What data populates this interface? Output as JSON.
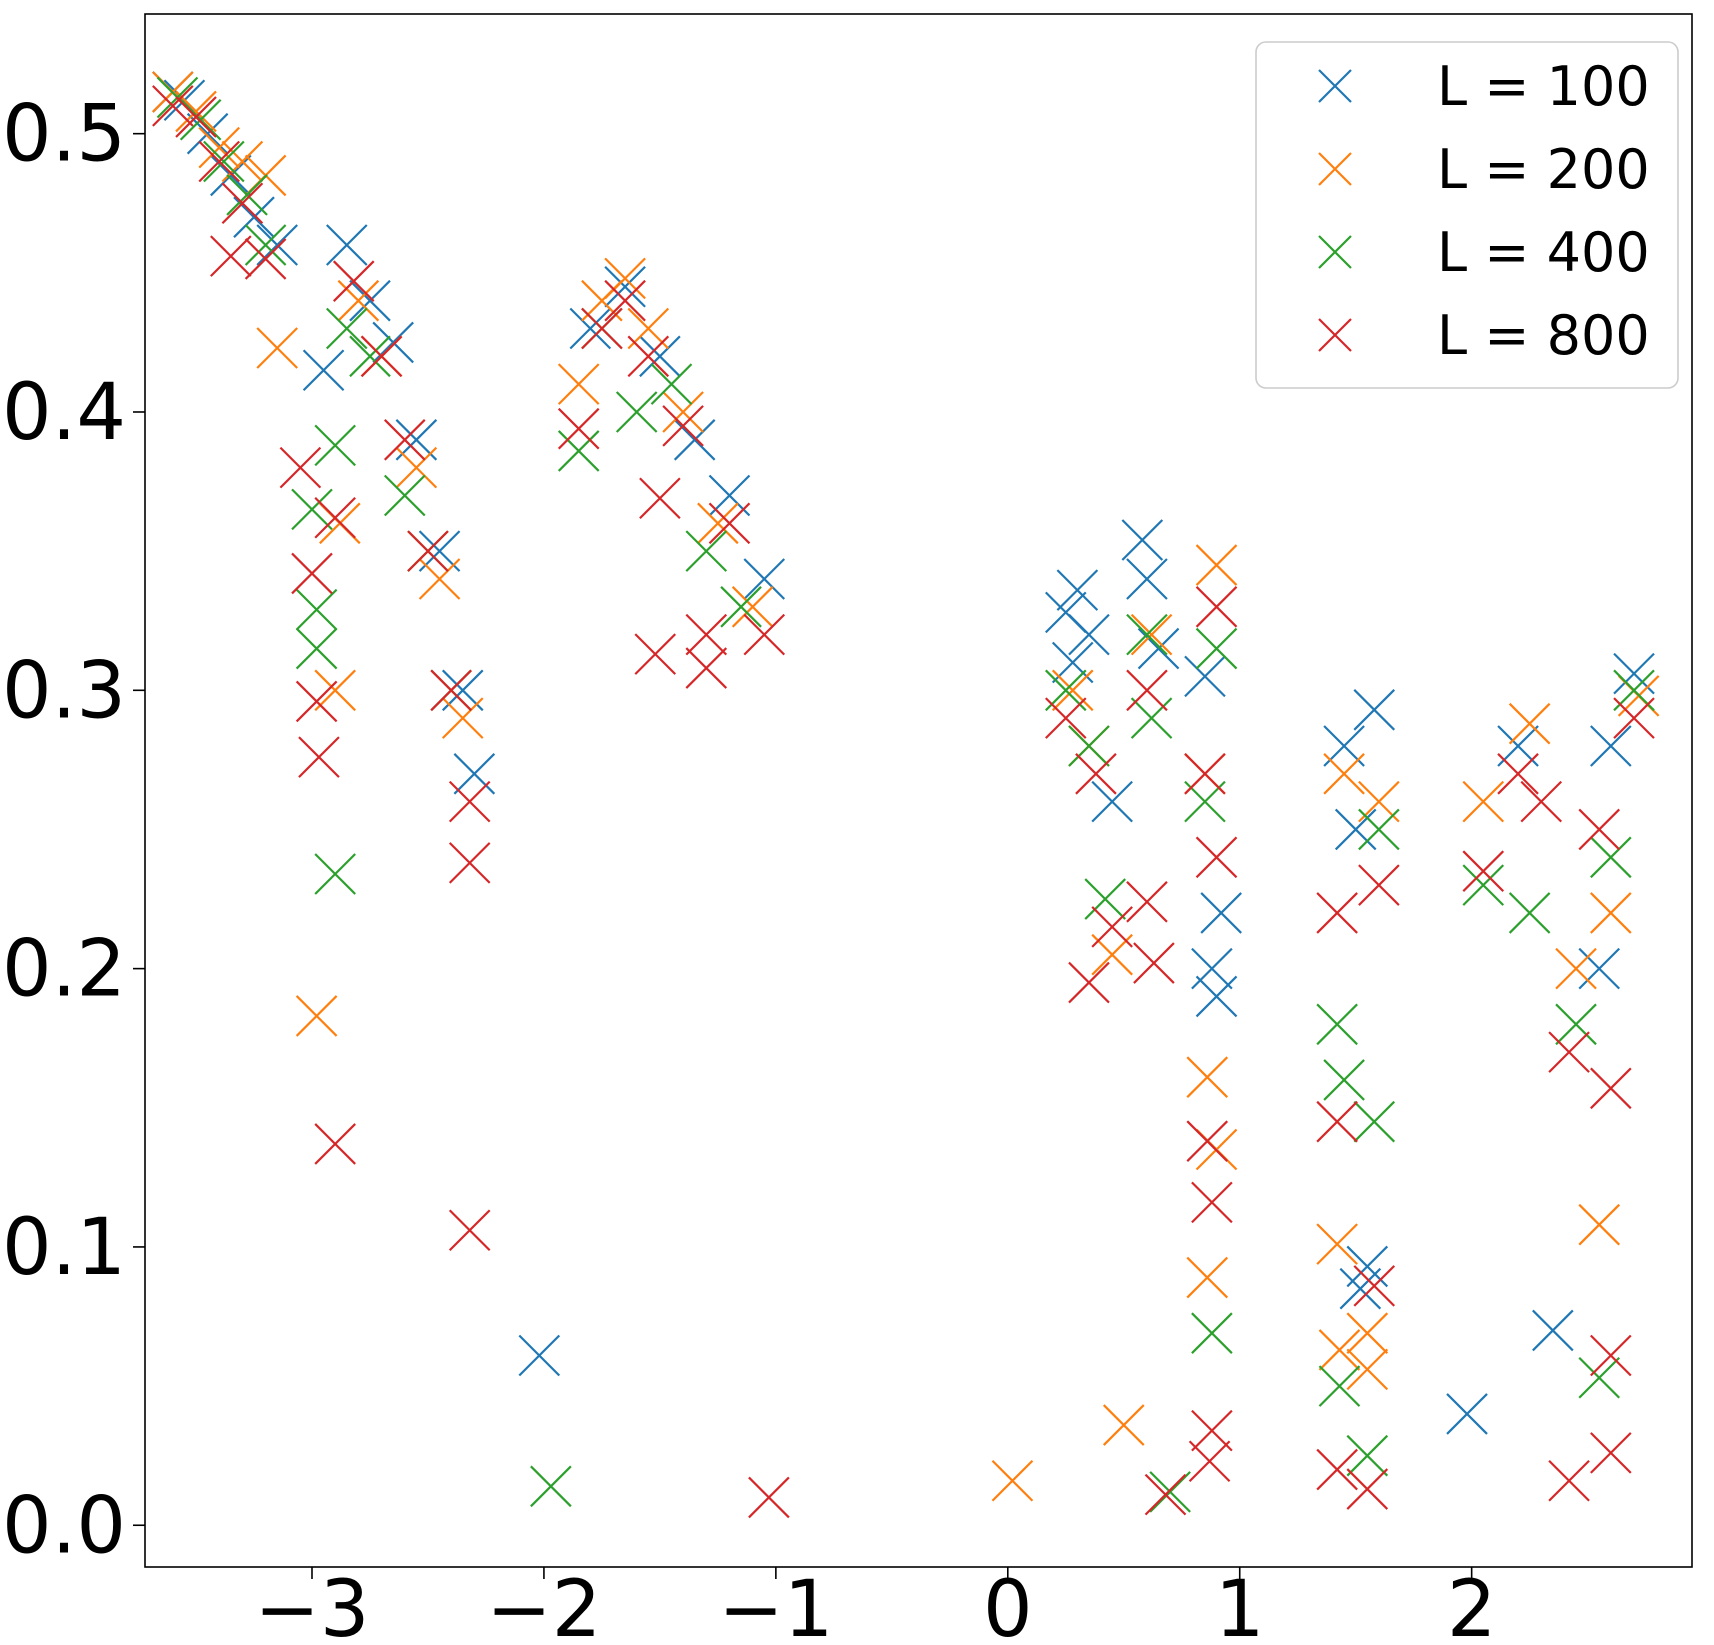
{
  "chart_data": {
    "type": "scatter",
    "title": "",
    "xlabel": "",
    "ylabel": "",
    "xlim": [
      -3.72,
      2.95
    ],
    "ylim": [
      -0.015,
      0.543
    ],
    "xticks": [
      -3,
      -2,
      -1,
      0,
      1,
      2
    ],
    "xtick_labels": [
      "−3",
      "−2",
      "−1",
      "0",
      "1",
      "2"
    ],
    "yticks": [
      0.0,
      0.1,
      0.2,
      0.3,
      0.4,
      0.5
    ],
    "ytick_labels": [
      "0.0",
      "0.1",
      "0.2",
      "0.3",
      "0.4",
      "0.5"
    ],
    "grid": false,
    "legend_position": "top-right",
    "marker": "x",
    "series": [
      {
        "name": "L = 100",
        "color": "#1f77b4",
        "points": [
          [
            -3.6,
            0.515
          ],
          [
            -3.55,
            0.512
          ],
          [
            -3.45,
            0.5
          ],
          [
            -3.35,
            0.485
          ],
          [
            -3.25,
            0.47
          ],
          [
            -3.15,
            0.46
          ],
          [
            -2.95,
            0.415
          ],
          [
            -2.85,
            0.46
          ],
          [
            -2.75,
            0.44
          ],
          [
            -2.65,
            0.425
          ],
          [
            -2.55,
            0.39
          ],
          [
            -2.45,
            0.35
          ],
          [
            -2.35,
            0.3
          ],
          [
            -2.3,
            0.27
          ],
          [
            -2.02,
            0.061
          ],
          [
            -1.8,
            0.43
          ],
          [
            -1.65,
            0.445
          ],
          [
            -1.5,
            0.42
          ],
          [
            -1.35,
            0.39
          ],
          [
            -1.2,
            0.37
          ],
          [
            -1.05,
            0.34
          ],
          [
            0.25,
            0.328
          ],
          [
            0.3,
            0.336
          ],
          [
            0.35,
            0.32
          ],
          [
            0.28,
            0.31
          ],
          [
            0.45,
            0.26
          ],
          [
            0.58,
            0.354
          ],
          [
            0.6,
            0.34
          ],
          [
            0.65,
            0.315
          ],
          [
            0.85,
            0.305
          ],
          [
            0.88,
            0.2
          ],
          [
            0.9,
            0.19
          ],
          [
            0.92,
            0.22
          ],
          [
            1.45,
            0.28
          ],
          [
            1.5,
            0.25
          ],
          [
            1.55,
            0.093
          ],
          [
            1.52,
            0.085
          ],
          [
            1.58,
            0.293
          ],
          [
            1.98,
            0.04
          ],
          [
            2.2,
            0.28
          ],
          [
            2.35,
            0.07
          ],
          [
            2.55,
            0.2
          ],
          [
            2.7,
            0.306
          ],
          [
            2.6,
            0.28
          ]
        ]
      },
      {
        "name": "L = 200",
        "color": "#ff7f0e",
        "points": [
          [
            -3.6,
            0.515
          ],
          [
            -3.5,
            0.508
          ],
          [
            -3.4,
            0.495
          ],
          [
            -3.3,
            0.49
          ],
          [
            -3.2,
            0.485
          ],
          [
            -3.15,
            0.423
          ],
          [
            -2.98,
            0.183
          ],
          [
            -2.9,
            0.3
          ],
          [
            -2.88,
            0.36
          ],
          [
            -2.8,
            0.44
          ],
          [
            -2.7,
            0.42
          ],
          [
            -2.55,
            0.38
          ],
          [
            -2.45,
            0.34
          ],
          [
            -2.35,
            0.29
          ],
          [
            -1.85,
            0.41
          ],
          [
            -1.75,
            0.44
          ],
          [
            -1.65,
            0.448
          ],
          [
            -1.55,
            0.43
          ],
          [
            -1.4,
            0.4
          ],
          [
            -1.25,
            0.36
          ],
          [
            -1.1,
            0.33
          ],
          [
            0.02,
            0.016
          ],
          [
            0.28,
            0.3
          ],
          [
            0.35,
            0.28
          ],
          [
            0.45,
            0.205
          ],
          [
            0.5,
            0.036
          ],
          [
            0.62,
            0.32
          ],
          [
            0.85,
            0.27
          ],
          [
            0.86,
            0.161
          ],
          [
            0.86,
            0.089
          ],
          [
            0.9,
            0.135
          ],
          [
            0.9,
            0.345
          ],
          [
            1.42,
            0.101
          ],
          [
            1.43,
            0.063
          ],
          [
            1.45,
            0.27
          ],
          [
            1.55,
            0.069
          ],
          [
            1.55,
            0.056
          ],
          [
            1.6,
            0.26
          ],
          [
            2.05,
            0.26
          ],
          [
            2.25,
            0.288
          ],
          [
            2.45,
            0.2
          ],
          [
            2.55,
            0.108
          ],
          [
            2.6,
            0.22
          ],
          [
            2.72,
            0.298
          ]
        ]
      },
      {
        "name": "L = 400",
        "color": "#2ca02c",
        "points": [
          [
            -3.58,
            0.513
          ],
          [
            -3.48,
            0.505
          ],
          [
            -3.38,
            0.49
          ],
          [
            -3.28,
            0.478
          ],
          [
            -3.2,
            0.46
          ],
          [
            -3.0,
            0.365
          ],
          [
            -2.98,
            0.329
          ],
          [
            -2.98,
            0.315
          ],
          [
            -2.9,
            0.388
          ],
          [
            -2.9,
            0.234
          ],
          [
            -2.85,
            0.43
          ],
          [
            -2.75,
            0.42
          ],
          [
            -2.6,
            0.37
          ],
          [
            -2.5,
            0.35
          ],
          [
            -2.4,
            0.3
          ],
          [
            -1.97,
            0.014
          ],
          [
            -1.85,
            0.386
          ],
          [
            -1.75,
            0.43
          ],
          [
            -1.6,
            0.4
          ],
          [
            -1.45,
            0.41
          ],
          [
            -1.3,
            0.35
          ],
          [
            -1.15,
            0.33
          ],
          [
            0.25,
            0.3
          ],
          [
            0.35,
            0.28
          ],
          [
            0.42,
            0.225
          ],
          [
            0.6,
            0.32
          ],
          [
            0.62,
            0.29
          ],
          [
            0.7,
            0.012
          ],
          [
            0.85,
            0.26
          ],
          [
            0.88,
            0.069
          ],
          [
            0.9,
            0.315
          ],
          [
            1.42,
            0.18
          ],
          [
            1.43,
            0.05
          ],
          [
            1.45,
            0.16
          ],
          [
            1.55,
            0.025
          ],
          [
            1.58,
            0.145
          ],
          [
            1.6,
            0.25
          ],
          [
            2.05,
            0.23
          ],
          [
            2.25,
            0.22
          ],
          [
            2.45,
            0.18
          ],
          [
            2.55,
            0.053
          ],
          [
            2.6,
            0.24
          ],
          [
            2.7,
            0.3
          ]
        ]
      },
      {
        "name": "L = 800",
        "color": "#d62728",
        "points": [
          [
            -3.6,
            0.51
          ],
          [
            -3.5,
            0.506
          ],
          [
            -3.4,
            0.49
          ],
          [
            -3.3,
            0.475
          ],
          [
            -3.2,
            0.455
          ],
          [
            -3.35,
            0.456
          ],
          [
            -3.05,
            0.38
          ],
          [
            -3.0,
            0.342
          ],
          [
            -2.98,
            0.296
          ],
          [
            -2.97,
            0.276
          ],
          [
            -2.9,
            0.362
          ],
          [
            -2.9,
            0.137
          ],
          [
            -2.82,
            0.447
          ],
          [
            -2.7,
            0.42
          ],
          [
            -2.6,
            0.39
          ],
          [
            -2.5,
            0.35
          ],
          [
            -2.4,
            0.3
          ],
          [
            -2.32,
            0.26
          ],
          [
            -2.32,
            0.238
          ],
          [
            -2.32,
            0.106
          ],
          [
            -1.85,
            0.394
          ],
          [
            -1.75,
            0.43
          ],
          [
            -1.65,
            0.44
          ],
          [
            -1.55,
            0.42
          ],
          [
            -1.4,
            0.395
          ],
          [
            -1.5,
            0.369
          ],
          [
            -1.52,
            0.313
          ],
          [
            -1.3,
            0.32
          ],
          [
            -1.3,
            0.308
          ],
          [
            -1.2,
            0.36
          ],
          [
            -1.05,
            0.32
          ],
          [
            -1.03,
            0.01
          ],
          [
            0.25,
            0.29
          ],
          [
            0.35,
            0.195
          ],
          [
            0.38,
            0.27
          ],
          [
            0.45,
            0.215
          ],
          [
            0.6,
            0.3
          ],
          [
            0.6,
            0.224
          ],
          [
            0.63,
            0.202
          ],
          [
            0.68,
            0.011
          ],
          [
            0.85,
            0.27
          ],
          [
            0.86,
            0.138
          ],
          [
            0.88,
            0.116
          ],
          [
            0.88,
            0.034
          ],
          [
            0.87,
            0.023
          ],
          [
            0.9,
            0.33
          ],
          [
            0.9,
            0.24
          ],
          [
            1.42,
            0.22
          ],
          [
            1.42,
            0.145
          ],
          [
            1.42,
            0.02
          ],
          [
            1.55,
            0.013
          ],
          [
            1.58,
            0.086
          ],
          [
            1.6,
            0.23
          ],
          [
            2.05,
            0.235
          ],
          [
            2.2,
            0.27
          ],
          [
            2.3,
            0.26
          ],
          [
            2.42,
            0.17
          ],
          [
            2.42,
            0.016
          ],
          [
            2.55,
            0.25
          ],
          [
            2.6,
            0.157
          ],
          [
            2.6,
            0.061
          ],
          [
            2.6,
            0.026
          ],
          [
            2.7,
            0.29
          ]
        ]
      }
    ]
  }
}
